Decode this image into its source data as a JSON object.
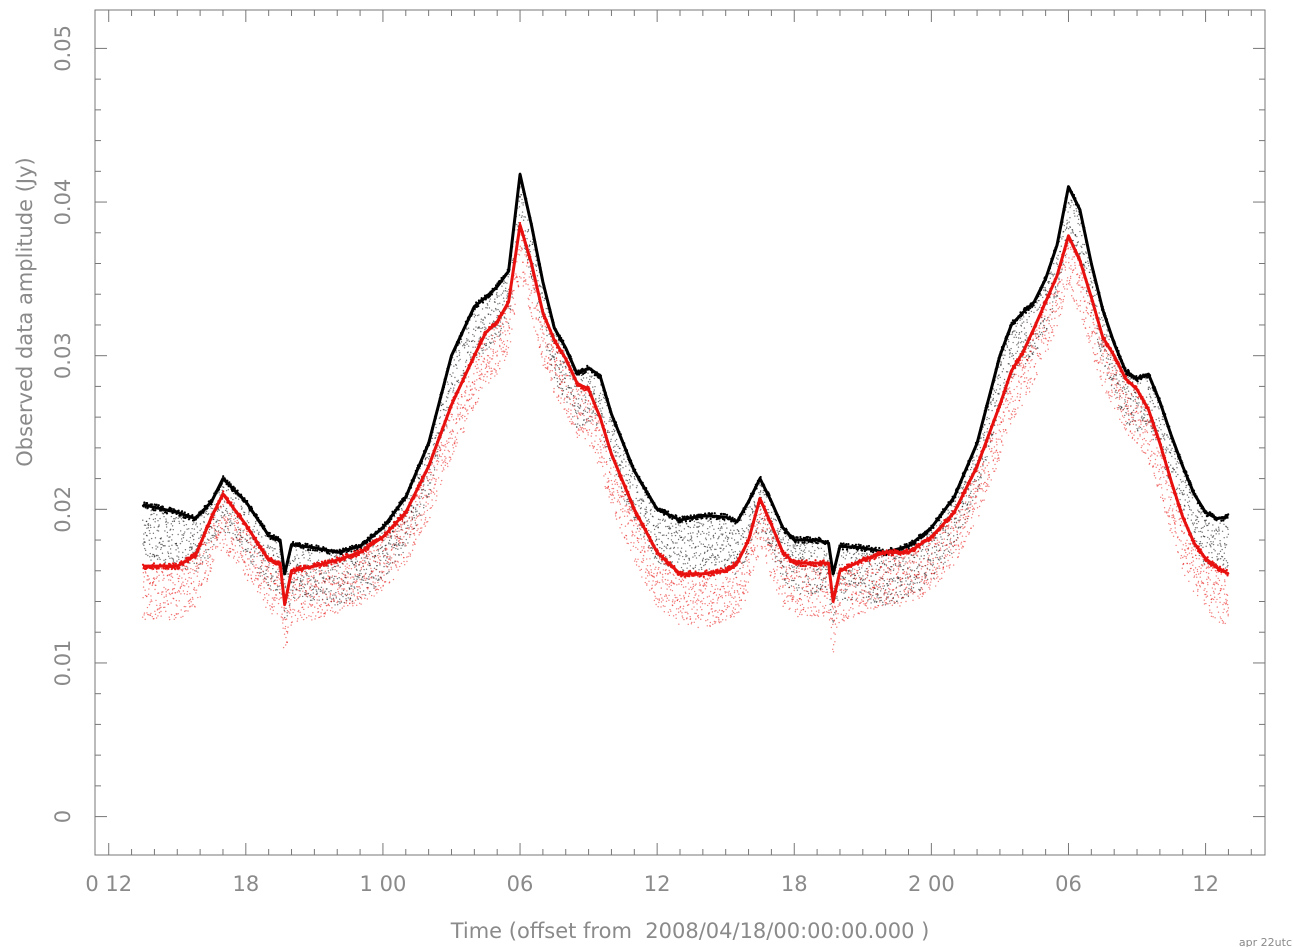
{
  "chart_data": {
    "type": "scatter",
    "title": "",
    "xlabel": "Time (offset from  2008/04/18/00:00:00.000 )",
    "ylabel": "Observed data amplitude (Jy)",
    "x_unit": "hours",
    "xlim": [
      11.4,
      62.6
    ],
    "ylim": [
      -0.0025,
      0.0525
    ],
    "x_ticks": [
      {
        "value": 12,
        "label": "0 12"
      },
      {
        "value": 18,
        "label": "18"
      },
      {
        "value": 24,
        "label": "1 00"
      },
      {
        "value": 30,
        "label": "06"
      },
      {
        "value": 36,
        "label": "12"
      },
      {
        "value": 42,
        "label": "18"
      },
      {
        "value": 48,
        "label": "2 00"
      },
      {
        "value": 54,
        "label": "06"
      },
      {
        "value": 60,
        "label": "12"
      }
    ],
    "y_ticks": [
      {
        "value": 0,
        "label": "0"
      },
      {
        "value": 0.01,
        "label": "0.01"
      },
      {
        "value": 0.02,
        "label": "0.02"
      },
      {
        "value": 0.03,
        "label": "0.03"
      },
      {
        "value": 0.04,
        "label": "0.04"
      },
      {
        "value": 0.05,
        "label": "0.05"
      }
    ],
    "grid": false,
    "legend": "none",
    "series": [
      {
        "color": "#000000",
        "x": [
          13.5,
          15,
          15.8,
          16.5,
          17,
          18,
          19,
          19.5,
          19.7,
          20,
          21,
          22,
          23,
          24,
          25,
          26,
          27,
          28,
          28.5,
          29,
          29.5,
          30,
          30.5,
          31,
          31.5,
          32,
          32.5,
          33,
          33.5,
          34,
          35,
          36,
          37,
          38,
          39,
          39.5,
          40,
          40.5,
          41,
          41.5,
          42,
          43,
          43.5,
          43.7,
          44,
          45,
          46,
          47,
          48,
          49,
          50,
          51,
          51.5,
          52,
          52.5,
          53,
          53.5,
          54,
          54.5,
          55,
          55.5,
          56,
          56.5,
          57,
          57.5,
          58,
          58.5,
          59,
          59.5,
          60,
          60.5,
          61
        ],
        "y": [
          0.0203,
          0.0198,
          0.0194,
          0.0205,
          0.022,
          0.0205,
          0.0183,
          0.018,
          0.0158,
          0.0177,
          0.0175,
          0.0172,
          0.0176,
          0.0188,
          0.0208,
          0.0243,
          0.03,
          0.0332,
          0.0338,
          0.0345,
          0.0355,
          0.0418,
          0.0385,
          0.0348,
          0.0318,
          0.0305,
          0.0288,
          0.0292,
          0.0287,
          0.0262,
          0.0225,
          0.02,
          0.0193,
          0.0196,
          0.0195,
          0.0192,
          0.0205,
          0.022,
          0.0205,
          0.0188,
          0.018,
          0.018,
          0.0178,
          0.0158,
          0.0176,
          0.0175,
          0.0172,
          0.0176,
          0.0188,
          0.0208,
          0.0243,
          0.03,
          0.032,
          0.0328,
          0.0335,
          0.035,
          0.0372,
          0.041,
          0.0395,
          0.036,
          0.033,
          0.0308,
          0.029,
          0.0285,
          0.0288,
          0.027,
          0.0248,
          0.0228,
          0.021,
          0.0198,
          0.0194,
          0.0195
        ]
      },
      {
        "color": "#e8110f",
        "x": [
          13.5,
          15,
          15.8,
          16.5,
          17,
          18,
          19,
          19.5,
          19.7,
          20,
          21,
          22,
          23,
          24,
          25,
          26,
          27,
          28,
          28.5,
          29,
          29.5,
          30,
          30.5,
          31,
          31.5,
          32,
          32.5,
          33,
          33.5,
          34,
          35,
          36,
          37,
          38,
          39,
          39.5,
          40,
          40.5,
          41,
          41.5,
          42,
          43,
          43.5,
          43.7,
          44,
          45,
          46,
          47,
          48,
          49,
          50,
          51,
          51.5,
          52,
          52.5,
          53,
          53.5,
          54,
          54.5,
          55,
          55.5,
          56,
          56.5,
          57,
          57.5,
          58,
          58.5,
          59,
          59.5,
          60,
          60.5,
          61
        ],
        "y": [
          0.0163,
          0.0163,
          0.017,
          0.0195,
          0.021,
          0.019,
          0.0167,
          0.0165,
          0.0138,
          0.016,
          0.0163,
          0.0167,
          0.0172,
          0.0182,
          0.0198,
          0.0228,
          0.0268,
          0.03,
          0.0315,
          0.0322,
          0.0335,
          0.0385,
          0.036,
          0.0328,
          0.031,
          0.0298,
          0.0282,
          0.0278,
          0.026,
          0.0236,
          0.02,
          0.0172,
          0.0158,
          0.0158,
          0.016,
          0.0165,
          0.018,
          0.0207,
          0.019,
          0.0172,
          0.0165,
          0.0165,
          0.0165,
          0.014,
          0.016,
          0.0167,
          0.0172,
          0.0172,
          0.0182,
          0.0198,
          0.0228,
          0.0268,
          0.029,
          0.0302,
          0.0318,
          0.0335,
          0.0352,
          0.0378,
          0.0362,
          0.0338,
          0.0312,
          0.03,
          0.0285,
          0.0278,
          0.0265,
          0.0243,
          0.0218,
          0.0195,
          0.0178,
          0.0168,
          0.0162,
          0.0158
        ]
      }
    ]
  },
  "footer_text": "apr 22utc"
}
